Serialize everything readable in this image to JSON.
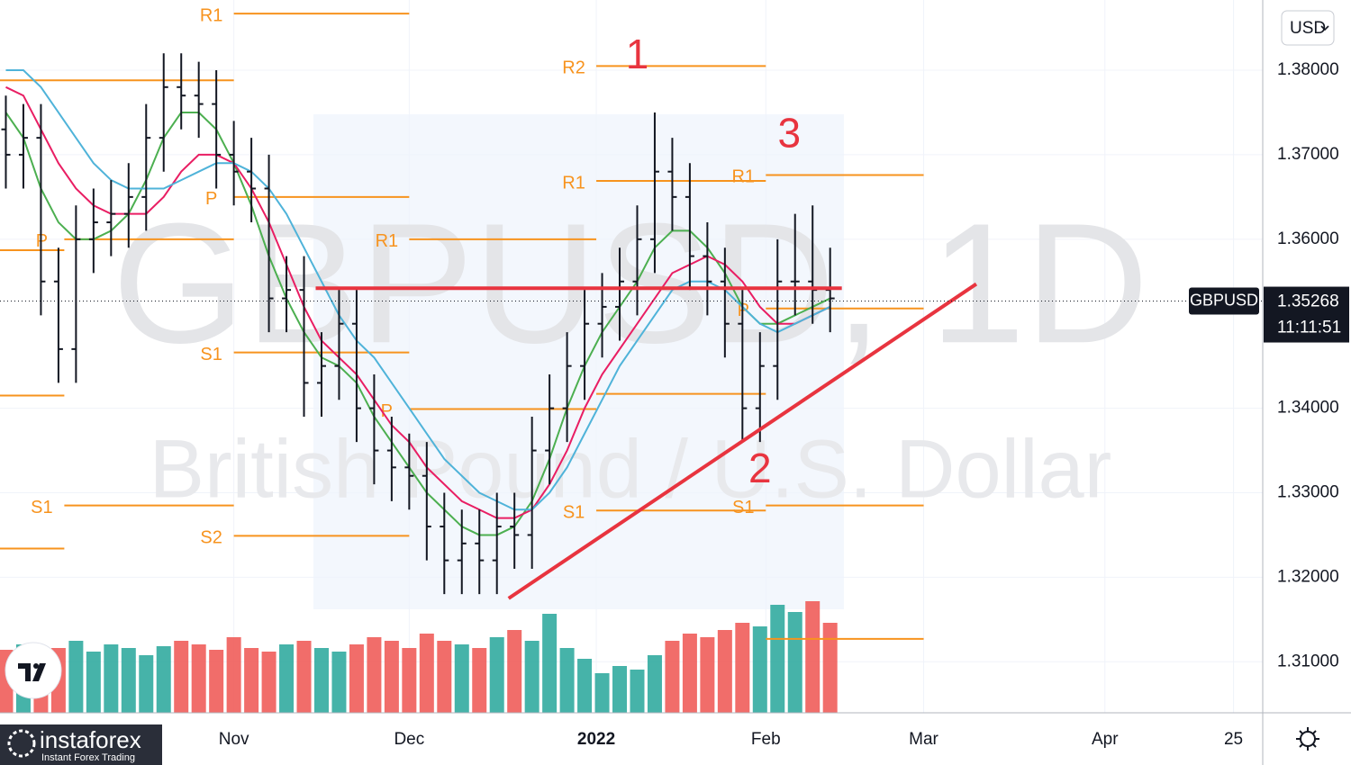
{
  "chart_data": {
    "type": "ohlc",
    "watermark": "GBPUSD, 1D",
    "description": "British Pound / U.S. Dollar",
    "currency": "USD",
    "xlim": [
      -9,
      207
    ],
    "xticks": [
      {
        "value": 31,
        "label": "Nov"
      },
      {
        "value": 61,
        "label": "Dec"
      },
      {
        "value": 93,
        "label": "2022"
      },
      {
        "value": 122,
        "label": "Feb"
      },
      {
        "value": 149,
        "label": "Mar"
      },
      {
        "value": 180,
        "label": "Apr"
      },
      {
        "value": 202,
        "label": "25"
      }
    ],
    "ylim": [
      1.30396,
      1.38831
    ],
    "yticks": [
      {
        "value": 1.38,
        "label": "1.38000"
      },
      {
        "value": 1.37,
        "label": "1.37000"
      },
      {
        "value": 1.36,
        "label": "1.36000"
      },
      {
        "value": 1.34,
        "label": "1.34000"
      },
      {
        "value": 1.33,
        "label": "1.33000"
      },
      {
        "value": 1.32,
        "label": "1.32000"
      },
      {
        "value": 1.31,
        "label": "1.31000"
      }
    ],
    "x": [
      -8,
      -5,
      -2,
      1,
      4,
      7,
      10,
      13,
      16,
      19,
      22,
      25,
      28,
      31,
      34,
      37,
      40,
      43,
      46,
      49,
      52,
      55,
      58,
      61,
      64,
      67,
      70,
      73,
      76,
      79,
      82,
      85,
      88,
      91,
      94,
      97,
      100,
      103,
      106,
      109,
      112,
      115,
      118,
      121,
      124,
      127,
      130,
      133
    ],
    "open": [
      1.373,
      1.37,
      1.372,
      1.355,
      1.347,
      1.36,
      1.362,
      1.363,
      1.365,
      1.372,
      1.378,
      1.377,
      1.376,
      1.37,
      1.368,
      1.366,
      1.353,
      1.354,
      1.343,
      1.345,
      1.35,
      1.34,
      1.335,
      1.333,
      1.332,
      1.326,
      1.322,
      1.324,
      1.322,
      1.326,
      1.325,
      1.335,
      1.34,
      1.345,
      1.35,
      1.352,
      1.355,
      1.36,
      1.368,
      1.365,
      1.358,
      1.355,
      1.35,
      1.34,
      1.345,
      1.355,
      1.355,
      1.354
    ],
    "high": [
      1.377,
      1.376,
      1.376,
      1.359,
      1.364,
      1.366,
      1.367,
      1.369,
      1.376,
      1.382,
      1.382,
      1.381,
      1.38,
      1.374,
      1.372,
      1.37,
      1.358,
      1.358,
      1.349,
      1.354,
      1.354,
      1.344,
      1.339,
      1.337,
      1.336,
      1.33,
      1.328,
      1.328,
      1.33,
      1.33,
      1.339,
      1.344,
      1.349,
      1.354,
      1.356,
      1.359,
      1.364,
      1.375,
      1.372,
      1.369,
      1.362,
      1.359,
      1.354,
      1.349,
      1.36,
      1.363,
      1.364,
      1.359
    ],
    "low": [
      1.366,
      1.366,
      1.351,
      1.343,
      1.343,
      1.356,
      1.358,
      1.359,
      1.361,
      1.368,
      1.373,
      1.372,
      1.366,
      1.364,
      1.362,
      1.349,
      1.349,
      1.339,
      1.339,
      1.341,
      1.336,
      1.331,
      1.329,
      1.328,
      1.322,
      1.318,
      1.318,
      1.318,
      1.318,
      1.321,
      1.321,
      1.331,
      1.336,
      1.341,
      1.346,
      1.348,
      1.351,
      1.356,
      1.361,
      1.354,
      1.351,
      1.346,
      1.336,
      1.336,
      1.341,
      1.351,
      1.35,
      1.349
    ],
    "close": [
      1.37,
      1.372,
      1.355,
      1.347,
      1.36,
      1.362,
      1.363,
      1.365,
      1.372,
      1.378,
      1.377,
      1.376,
      1.37,
      1.368,
      1.366,
      1.353,
      1.354,
      1.343,
      1.345,
      1.35,
      1.34,
      1.335,
      1.333,
      1.332,
      1.326,
      1.322,
      1.324,
      1.322,
      1.326,
      1.325,
      1.335,
      1.34,
      1.345,
      1.35,
      1.352,
      1.355,
      1.36,
      1.368,
      1.365,
      1.358,
      1.355,
      1.35,
      1.34,
      1.345,
      1.355,
      1.355,
      1.354,
      1.353
    ],
    "volume": [
      35,
      38,
      30,
      36,
      40,
      34,
      38,
      36,
      32,
      37,
      40,
      38,
      35,
      42,
      36,
      34,
      38,
      40,
      36,
      34,
      38,
      42,
      40,
      36,
      44,
      40,
      38,
      36,
      42,
      46,
      40,
      55,
      36,
      30,
      22,
      26,
      24,
      32,
      40,
      44,
      42,
      46,
      50,
      48,
      60,
      56,
      62,
      50
    ],
    "volume_lim": [
      0,
      100
    ],
    "up_color": "#26a69a",
    "down_color": "#ef5350",
    "series": [
      {
        "color": "#4caf50",
        "values": [
          1.375,
          1.372,
          1.366,
          1.362,
          1.36,
          1.36,
          1.361,
          1.363,
          1.367,
          1.372,
          1.375,
          1.375,
          1.373,
          1.369,
          1.364,
          1.358,
          1.353,
          1.349,
          1.346,
          1.345,
          1.343,
          1.339,
          1.336,
          1.333,
          1.33,
          1.328,
          1.326,
          1.325,
          1.325,
          1.326,
          1.329,
          1.334,
          1.34,
          1.345,
          1.349,
          1.352,
          1.355,
          1.359,
          1.361,
          1.361,
          1.359,
          1.356,
          1.352,
          1.35,
          1.35,
          1.351,
          1.352,
          1.353
        ]
      },
      {
        "color": "#e91e63",
        "values": [
          1.378,
          1.377,
          1.373,
          1.369,
          1.366,
          1.364,
          1.363,
          1.363,
          1.363,
          1.365,
          1.368,
          1.37,
          1.37,
          1.369,
          1.366,
          1.362,
          1.357,
          1.352,
          1.348,
          1.346,
          1.344,
          1.341,
          1.338,
          1.336,
          1.333,
          1.331,
          1.329,
          1.328,
          1.327,
          1.327,
          1.328,
          1.331,
          1.335,
          1.34,
          1.344,
          1.347,
          1.35,
          1.353,
          1.356,
          1.357,
          1.358,
          1.357,
          1.355,
          1.352,
          1.35,
          1.35,
          1.351,
          1.352
        ]
      },
      {
        "color": "#4fb3d9",
        "values": [
          1.38,
          1.38,
          1.378,
          1.375,
          1.372,
          1.369,
          1.367,
          1.366,
          1.366,
          1.366,
          1.367,
          1.368,
          1.369,
          1.369,
          1.368,
          1.366,
          1.363,
          1.359,
          1.355,
          1.351,
          1.348,
          1.346,
          1.343,
          1.34,
          1.337,
          1.334,
          1.332,
          1.33,
          1.329,
          1.328,
          1.328,
          1.33,
          1.333,
          1.337,
          1.341,
          1.345,
          1.348,
          1.351,
          1.354,
          1.355,
          1.355,
          1.354,
          1.352,
          1.35,
          1.349,
          1.35,
          1.351,
          1.352
        ]
      }
    ],
    "level_color": "#f7931e",
    "levels": [
      {
        "label": "R1",
        "value": 1.3867,
        "x": [
          31,
          61
        ]
      },
      {
        "label": "R1",
        "value": 1.3788,
        "x": [
          -9,
          31
        ]
      },
      {
        "label": "P",
        "value": 1.365,
        "x": [
          31,
          61
        ]
      },
      {
        "label": "P",
        "value": 1.36,
        "x": [
          2,
          31
        ]
      },
      {
        "value": 1.3587,
        "x": [
          -9,
          2
        ]
      },
      {
        "label": "S1",
        "value": 1.3466,
        "x": [
          31,
          61
        ]
      },
      {
        "value": 1.3415,
        "x": [
          -9,
          2
        ]
      },
      {
        "label": "S1",
        "value": 1.3285,
        "x": [
          2,
          31
        ]
      },
      {
        "value": 1.3234,
        "x": [
          -9,
          2
        ]
      },
      {
        "label": "S2",
        "value": 1.3249,
        "x": [
          31,
          61
        ]
      },
      {
        "label": "R1",
        "value": 1.36,
        "x": [
          61,
          93
        ]
      },
      {
        "label": "P",
        "value": 1.3399,
        "x": [
          61,
          93
        ]
      },
      {
        "label": "R2",
        "value": 1.3805,
        "x": [
          93,
          122
        ]
      },
      {
        "label": "R1",
        "value": 1.3669,
        "x": [
          93,
          122
        ]
      },
      {
        "value": 1.3417,
        "x": [
          93,
          122
        ]
      },
      {
        "label": "S1",
        "value": 1.3279,
        "x": [
          93,
          122
        ]
      },
      {
        "label": "R1",
        "value": 1.3676,
        "x": [
          122,
          149
        ]
      },
      {
        "label": "P",
        "value": 1.3518,
        "x": [
          122,
          149
        ]
      },
      {
        "label": "S1",
        "value": 1.3285,
        "x": [
          122,
          149
        ]
      },
      {
        "value": 1.3127,
        "x": [
          122,
          149
        ]
      }
    ],
    "drawings_color": "#e8343f",
    "hline": {
      "value": 1.3542,
      "x": [
        45,
        135
      ]
    },
    "trendline": {
      "x": [
        78,
        158
      ],
      "y": [
        1.3175,
        1.3547
      ]
    },
    "annotations": [
      {
        "text": "1",
        "x": 100,
        "y": 1.3815
      },
      {
        "text": "3",
        "x": 126,
        "y": 1.3722
      },
      {
        "text": "2",
        "x": 121,
        "y": 1.3325
      }
    ],
    "last_price": {
      "symbol": "GBPUSD",
      "value": 1.35268,
      "countdown": "11:11:51"
    },
    "branding": {
      "name": "instaforex",
      "tagline": "Instant Forex Trading"
    }
  }
}
